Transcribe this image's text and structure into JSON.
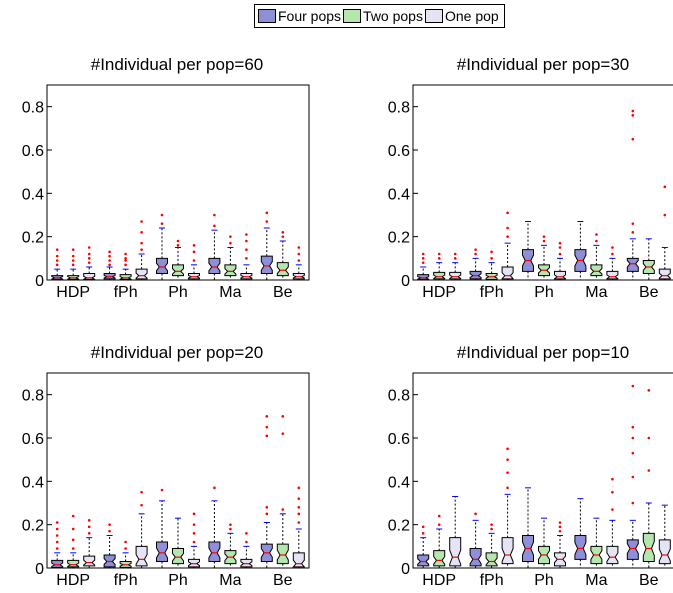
{
  "legend": {
    "items": [
      {
        "label": "Four pops",
        "color": "#8f8fd9"
      },
      {
        "label": "Two pops",
        "color": "#b5e6b0"
      },
      {
        "label": "One pop",
        "color": "#e4e4f5"
      }
    ]
  },
  "chart_data": [
    {
      "type": "box",
      "title": "#Individual per pop=60",
      "categories": [
        "HDP",
        "fPh",
        "Ph",
        "Ma",
        "Be"
      ],
      "yticks": [
        0,
        0.2,
        0.4,
        0.6,
        0.8
      ],
      "ytick_labels": [
        "0",
        "0.2",
        "0.4",
        "0.6",
        "0.8"
      ],
      "ylim": [
        0,
        0.9
      ],
      "series": [
        {
          "name": "Four pops",
          "boxes": [
            {
              "q1": 0.003,
              "med": 0.01,
              "q3": 0.02,
              "wlo": 0,
              "whi": 0.05,
              "outliers": [
                0.07,
                0.09,
                0.11,
                0.14
              ]
            },
            {
              "q1": 0.005,
              "med": 0.015,
              "q3": 0.03,
              "wlo": 0,
              "whi": 0.06,
              "outliers": [
                0.07,
                0.09,
                0.11,
                0.13
              ]
            },
            {
              "q1": 0.03,
              "med": 0.06,
              "q3": 0.1,
              "wlo": 0,
              "whi": 0.24,
              "outliers": [
                0.26,
                0.3
              ]
            },
            {
              "q1": 0.03,
              "med": 0.06,
              "q3": 0.1,
              "wlo": 0,
              "whi": 0.23,
              "outliers": [
                0.25,
                0.3
              ]
            },
            {
              "q1": 0.03,
              "med": 0.065,
              "q3": 0.11,
              "wlo": 0,
              "whi": 0.24,
              "outliers": [
                0.27,
                0.31
              ]
            }
          ]
        },
        {
          "name": "Two pops",
          "boxes": [
            {
              "q1": 0.003,
              "med": 0.01,
              "q3": 0.02,
              "wlo": 0,
              "whi": 0.05,
              "outliers": [
                0.07,
                0.09,
                0.11,
                0.14
              ]
            },
            {
              "q1": 0.003,
              "med": 0.01,
              "q3": 0.025,
              "wlo": 0,
              "whi": 0.05,
              "outliers": [
                0.07,
                0.09,
                0.1,
                0.12
              ]
            },
            {
              "q1": 0.02,
              "med": 0.04,
              "q3": 0.07,
              "wlo": 0,
              "whi": 0.15,
              "outliers": [
                0.16,
                0.18
              ]
            },
            {
              "q1": 0.02,
              "med": 0.04,
              "q3": 0.07,
              "wlo": 0,
              "whi": 0.15,
              "outliers": [
                0.17,
                0.2
              ]
            },
            {
              "q1": 0.02,
              "med": 0.045,
              "q3": 0.08,
              "wlo": 0,
              "whi": 0.18,
              "outliers": [
                0.2,
                0.22
              ]
            }
          ]
        },
        {
          "name": "One pop",
          "boxes": [
            {
              "q1": 0.003,
              "med": 0.01,
              "q3": 0.03,
              "wlo": 0,
              "whi": 0.06,
              "outliers": [
                0.08,
                0.1,
                0.12,
                0.15
              ]
            },
            {
              "q1": 0.005,
              "med": 0.02,
              "q3": 0.05,
              "wlo": 0,
              "whi": 0.12,
              "outliers": [
                0.14,
                0.17,
                0.22,
                0.27
              ]
            },
            {
              "q1": 0.005,
              "med": 0.015,
              "q3": 0.03,
              "wlo": 0,
              "whi": 0.07,
              "outliers": [
                0.09,
                0.13,
                0.16
              ]
            },
            {
              "q1": 0.005,
              "med": 0.015,
              "q3": 0.03,
              "wlo": 0,
              "whi": 0.07,
              "outliers": [
                0.1,
                0.14,
                0.18,
                0.21
              ]
            },
            {
              "q1": 0.005,
              "med": 0.015,
              "q3": 0.03,
              "wlo": 0,
              "whi": 0.07,
              "outliers": [
                0.09,
                0.12,
                0.15
              ]
            }
          ]
        }
      ]
    },
    {
      "type": "box",
      "title": "#Individual per pop=30",
      "categories": [
        "HDP",
        "fPh",
        "Ph",
        "Ma",
        "Be"
      ],
      "yticks": [
        0,
        0.2,
        0.4,
        0.6,
        0.8
      ],
      "ytick_labels": [
        "0",
        "0.2",
        "0.4",
        "0.6",
        "0.8"
      ],
      "ylim": [
        0,
        0.9
      ],
      "series": [
        {
          "name": "Four pops",
          "boxes": [
            {
              "q1": 0.003,
              "med": 0.01,
              "q3": 0.025,
              "wlo": 0,
              "whi": 0.06,
              "outliers": [
                0.08,
                0.1,
                0.12
              ]
            },
            {
              "q1": 0.005,
              "med": 0.02,
              "q3": 0.04,
              "wlo": 0,
              "whi": 0.1,
              "outliers": [
                0.12,
                0.14
              ]
            },
            {
              "q1": 0.04,
              "med": 0.09,
              "q3": 0.14,
              "wlo": 0,
              "whi": 0.27,
              "outliers": []
            },
            {
              "q1": 0.04,
              "med": 0.09,
              "q3": 0.14,
              "wlo": 0,
              "whi": 0.27,
              "outliers": []
            },
            {
              "q1": 0.04,
              "med": 0.075,
              "q3": 0.1,
              "wlo": 0,
              "whi": 0.19,
              "outliers": [
                0.22,
                0.26,
                0.65,
                0.76,
                0.78
              ]
            }
          ]
        },
        {
          "name": "Two pops",
          "boxes": [
            {
              "q1": 0.005,
              "med": 0.015,
              "q3": 0.035,
              "wlo": 0,
              "whi": 0.08,
              "outliers": [
                0.1,
                0.12
              ]
            },
            {
              "q1": 0.003,
              "med": 0.015,
              "q3": 0.03,
              "wlo": 0,
              "whi": 0.08,
              "outliers": [
                0.1,
                0.13
              ]
            },
            {
              "q1": 0.02,
              "med": 0.045,
              "q3": 0.07,
              "wlo": 0,
              "whi": 0.16,
              "outliers": [
                0.18,
                0.2
              ]
            },
            {
              "q1": 0.02,
              "med": 0.04,
              "q3": 0.07,
              "wlo": 0,
              "whi": 0.16,
              "outliers": [
                0.18,
                0.21
              ]
            },
            {
              "q1": 0.03,
              "med": 0.06,
              "q3": 0.09,
              "wlo": 0,
              "whi": 0.19,
              "outliers": []
            }
          ]
        },
        {
          "name": "One pop",
          "boxes": [
            {
              "q1": 0.005,
              "med": 0.015,
              "q3": 0.035,
              "wlo": 0,
              "whi": 0.08,
              "outliers": [
                0.1,
                0.12
              ]
            },
            {
              "q1": 0.005,
              "med": 0.02,
              "q3": 0.06,
              "wlo": 0,
              "whi": 0.17,
              "outliers": [
                0.2,
                0.24,
                0.31
              ]
            },
            {
              "q1": 0.005,
              "med": 0.015,
              "q3": 0.04,
              "wlo": 0,
              "whi": 0.1,
              "outliers": [
                0.12,
                0.15,
                0.17
              ]
            },
            {
              "q1": 0.005,
              "med": 0.015,
              "q3": 0.04,
              "wlo": 0,
              "whi": 0.1,
              "outliers": [
                0.12,
                0.15
              ]
            },
            {
              "q1": 0.005,
              "med": 0.02,
              "q3": 0.05,
              "wlo": 0,
              "whi": 0.15,
              "outliers": [
                0.3,
                0.43
              ]
            }
          ]
        }
      ]
    },
    {
      "type": "box",
      "title": "#Individual per pop=20",
      "categories": [
        "HDP",
        "fPh",
        "Ph",
        "Ma",
        "Be"
      ],
      "yticks": [
        0,
        0.2,
        0.4,
        0.6,
        0.8
      ],
      "ytick_labels": [
        "0",
        "0.2",
        "0.4",
        "0.6",
        "0.8"
      ],
      "ylim": [
        0,
        0.9
      ],
      "series": [
        {
          "name": "Four pops",
          "boxes": [
            {
              "q1": 0.003,
              "med": 0.015,
              "q3": 0.035,
              "wlo": 0,
              "whi": 0.07,
              "outliers": [
                0.09,
                0.12,
                0.15,
                0.18,
                0.21
              ]
            },
            {
              "q1": 0.005,
              "med": 0.03,
              "q3": 0.06,
              "wlo": 0,
              "whi": 0.15,
              "outliers": [
                0.17,
                0.2
              ]
            },
            {
              "q1": 0.03,
              "med": 0.07,
              "q3": 0.12,
              "wlo": 0,
              "whi": 0.31,
              "outliers": [
                0.36
              ]
            },
            {
              "q1": 0.03,
              "med": 0.07,
              "q3": 0.12,
              "wlo": 0,
              "whi": 0.31,
              "outliers": [
                0.37
              ]
            },
            {
              "q1": 0.03,
              "med": 0.07,
              "q3": 0.11,
              "wlo": 0,
              "whi": 0.21,
              "outliers": [
                0.25,
                0.28,
                0.61,
                0.65,
                0.7
              ]
            }
          ]
        },
        {
          "name": "Two pops",
          "boxes": [
            {
              "q1": 0.005,
              "med": 0.015,
              "q3": 0.035,
              "wlo": 0,
              "whi": 0.07,
              "outliers": [
                0.09,
                0.13,
                0.18,
                0.24
              ]
            },
            {
              "q1": 0.003,
              "med": 0.015,
              "q3": 0.03,
              "wlo": 0,
              "whi": 0.07,
              "outliers": [
                0.09,
                0.12
              ]
            },
            {
              "q1": 0.02,
              "med": 0.05,
              "q3": 0.09,
              "wlo": 0,
              "whi": 0.23,
              "outliers": []
            },
            {
              "q1": 0.02,
              "med": 0.05,
              "q3": 0.08,
              "wlo": 0,
              "whi": 0.16,
              "outliers": [
                0.18,
                0.2
              ]
            },
            {
              "q1": 0.02,
              "med": 0.06,
              "q3": 0.11,
              "wlo": 0,
              "whi": 0.25,
              "outliers": [
                0.27,
                0.62,
                0.7
              ]
            }
          ]
        },
        {
          "name": "One pop",
          "boxes": [
            {
              "q1": 0.01,
              "med": 0.025,
              "q3": 0.055,
              "wlo": 0,
              "whi": 0.14,
              "outliers": [
                0.16,
                0.19,
                0.22
              ]
            },
            {
              "q1": 0.01,
              "med": 0.04,
              "q3": 0.1,
              "wlo": 0,
              "whi": 0.25,
              "outliers": [
                0.29,
                0.35
              ]
            },
            {
              "q1": 0.005,
              "med": 0.02,
              "q3": 0.04,
              "wlo": 0,
              "whi": 0.1,
              "outliers": [
                0.12,
                0.16,
                0.2,
                0.25
              ]
            },
            {
              "q1": 0.005,
              "med": 0.02,
              "q3": 0.04,
              "wlo": 0,
              "whi": 0.1,
              "outliers": [
                0.12,
                0.16
              ]
            },
            {
              "q1": 0.005,
              "med": 0.02,
              "q3": 0.07,
              "wlo": 0,
              "whi": 0.18,
              "outliers": [
                0.21,
                0.25,
                0.28,
                0.32,
                0.37
              ]
            }
          ]
        }
      ]
    },
    {
      "type": "box",
      "title": "#Individual per pop=10",
      "categories": [
        "HDP",
        "fPh",
        "Ph",
        "Ma",
        "Be"
      ],
      "yticks": [
        0,
        0.2,
        0.4,
        0.6,
        0.8
      ],
      "ytick_labels": [
        "0",
        "0.2",
        "0.4",
        "0.6",
        "0.8"
      ],
      "ylim": [
        0,
        0.9
      ],
      "series": [
        {
          "name": "Four pops",
          "boxes": [
            {
              "q1": 0.01,
              "med": 0.03,
              "q3": 0.06,
              "wlo": 0,
              "whi": 0.14,
              "outliers": [
                0.16,
                0.19
              ]
            },
            {
              "q1": 0.01,
              "med": 0.04,
              "q3": 0.09,
              "wlo": 0,
              "whi": 0.22,
              "outliers": [
                0.25
              ]
            },
            {
              "q1": 0.03,
              "med": 0.09,
              "q3": 0.15,
              "wlo": 0,
              "whi": 0.37,
              "outliers": []
            },
            {
              "q1": 0.04,
              "med": 0.09,
              "q3": 0.15,
              "wlo": 0,
              "whi": 0.32,
              "outliers": []
            },
            {
              "q1": 0.04,
              "med": 0.09,
              "q3": 0.13,
              "wlo": 0,
              "whi": 0.22,
              "outliers": [
                0.3,
                0.42,
                0.53,
                0.6,
                0.65,
                0.84
              ]
            }
          ]
        },
        {
          "name": "Two pops",
          "boxes": [
            {
              "q1": 0.01,
              "med": 0.035,
              "q3": 0.08,
              "wlo": 0,
              "whi": 0.18,
              "outliers": [
                0.2,
                0.24
              ]
            },
            {
              "q1": 0.01,
              "med": 0.03,
              "q3": 0.07,
              "wlo": 0,
              "whi": 0.16,
              "outliers": [
                0.18,
                0.2
              ]
            },
            {
              "q1": 0.02,
              "med": 0.06,
              "q3": 0.1,
              "wlo": 0,
              "whi": 0.23,
              "outliers": []
            },
            {
              "q1": 0.02,
              "med": 0.06,
              "q3": 0.1,
              "wlo": 0,
              "whi": 0.23,
              "outliers": []
            },
            {
              "q1": 0.03,
              "med": 0.09,
              "q3": 0.16,
              "wlo": 0,
              "whi": 0.3,
              "outliers": [
                0.45,
                0.6,
                0.82
              ]
            }
          ]
        },
        {
          "name": "One pop",
          "boxes": [
            {
              "q1": 0.01,
              "med": 0.05,
              "q3": 0.14,
              "wlo": 0,
              "whi": 0.33,
              "outliers": []
            },
            {
              "q1": 0.02,
              "med": 0.06,
              "q3": 0.14,
              "wlo": 0,
              "whi": 0.34,
              "outliers": [
                0.37,
                0.44,
                0.5,
                0.55
              ]
            },
            {
              "q1": 0.01,
              "med": 0.04,
              "q3": 0.07,
              "wlo": 0,
              "whi": 0.15,
              "outliers": [
                0.17,
                0.19,
                0.21
              ]
            },
            {
              "q1": 0.02,
              "med": 0.05,
              "q3": 0.1,
              "wlo": 0,
              "whi": 0.22,
              "outliers": [
                0.27,
                0.35,
                0.41
              ]
            },
            {
              "q1": 0.02,
              "med": 0.06,
              "q3": 0.13,
              "wlo": 0,
              "whi": 0.29,
              "outliers": []
            }
          ]
        }
      ]
    }
  ]
}
